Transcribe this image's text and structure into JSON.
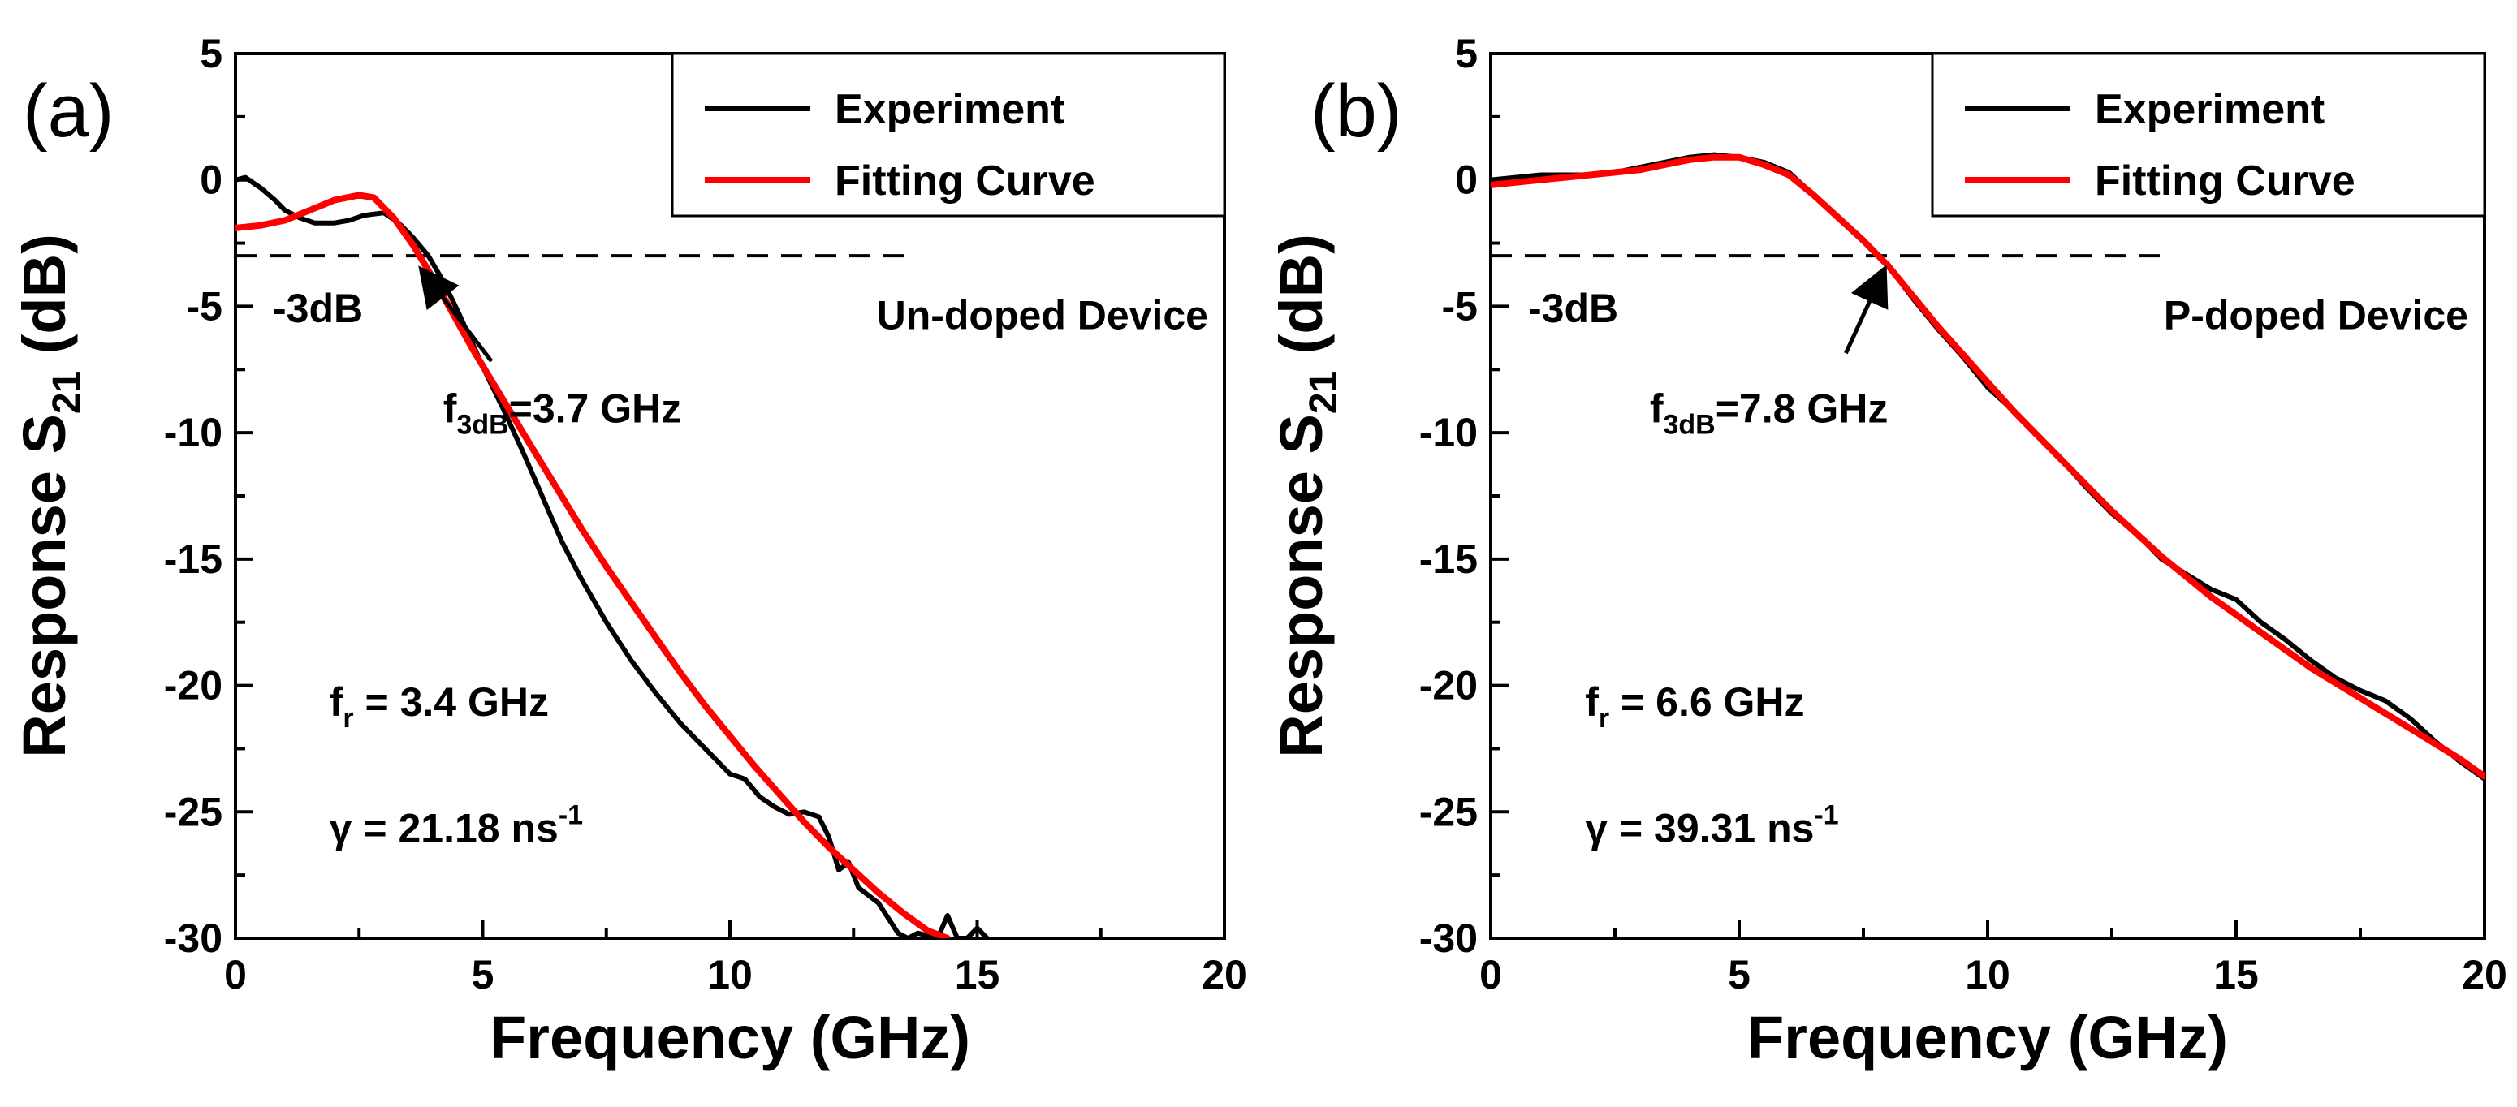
{
  "chart_data": [
    {
      "type": "line",
      "panel_label": "(a)",
      "xlabel": "Frequency (GHz)",
      "ylabel_main": "Response S",
      "ylabel_sub": "21",
      "ylabel_unit": " (dB)",
      "xlim": [
        0,
        20
      ],
      "ylim": [
        -30,
        5
      ],
      "xticks": [
        "0",
        "5",
        "10",
        "15",
        "20"
      ],
      "yticks": [
        "5",
        "0",
        "-5",
        "-10",
        "-15",
        "-20",
        "-25",
        "-30"
      ],
      "legend_position": "top-right",
      "legend": [
        "Experiment",
        "Fitting Curve"
      ],
      "threshold": {
        "y": -3,
        "x_end": 13.6,
        "label": "-3dB"
      },
      "device_label": "Un-doped Device",
      "f3db": {
        "prefix": "f",
        "sub": "3dB",
        "value_text": "=3.7 GHz",
        "x": 3.7,
        "y": -3
      },
      "fr_text": {
        "prefix": "f",
        "sub": "r",
        "value_text": " = 3.4 GHz"
      },
      "gamma_text": {
        "base": "γ = 21.18 ns",
        "sup": "-1"
      },
      "series": [
        {
          "name": "Experiment",
          "color": "#000000",
          "x": [
            0.0,
            0.2,
            0.5,
            0.8,
            1.0,
            1.3,
            1.6,
            2.0,
            2.3,
            2.6,
            3.0,
            3.3,
            3.6,
            3.9,
            4.2,
            4.5,
            4.8,
            5.1,
            5.4,
            5.8,
            6.2,
            6.6,
            7.0,
            7.5,
            8.0,
            8.5,
            9.0,
            9.5,
            10.0,
            10.3,
            10.6,
            10.9,
            11.2,
            11.5,
            11.8,
            12.0,
            12.2,
            12.4,
            12.6,
            12.8,
            13.0,
            13.2,
            13.4,
            13.6,
            13.8,
            14.0,
            14.2,
            14.4,
            14.6,
            14.8,
            15.0,
            15.2
          ],
          "y": [
            0.0,
            0.1,
            -0.3,
            -0.8,
            -1.2,
            -1.5,
            -1.7,
            -1.7,
            -1.6,
            -1.4,
            -1.3,
            -1.7,
            -2.3,
            -3.0,
            -4.0,
            -5.2,
            -6.5,
            -7.8,
            -9.0,
            -10.7,
            -12.5,
            -14.3,
            -15.8,
            -17.5,
            -19.0,
            -20.3,
            -21.5,
            -22.5,
            -23.5,
            -23.7,
            -24.4,
            -24.8,
            -25.1,
            -25.0,
            -25.2,
            -26.0,
            -27.3,
            -27.0,
            -28.0,
            -28.3,
            -28.6,
            -29.2,
            -29.8,
            -30.0,
            -29.8,
            -29.9,
            -30.0,
            -29.1,
            -30.0,
            -30.0,
            -29.6,
            -30.0
          ]
        },
        {
          "name": "Fitting Curve",
          "color": "#ff0000",
          "x": [
            0.0,
            0.5,
            1.0,
            1.5,
            2.0,
            2.5,
            2.8,
            3.2,
            3.6,
            4.0,
            4.4,
            4.8,
            5.2,
            5.6,
            6.0,
            6.5,
            7.0,
            7.5,
            8.0,
            8.5,
            9.0,
            9.5,
            10.0,
            10.5,
            11.0,
            11.5,
            12.0,
            12.5,
            13.0,
            13.5,
            14.0,
            14.4
          ],
          "y": [
            -1.9,
            -1.8,
            -1.6,
            -1.2,
            -0.8,
            -0.6,
            -0.7,
            -1.5,
            -2.6,
            -3.9,
            -5.3,
            -6.7,
            -8.0,
            -9.3,
            -10.6,
            -12.2,
            -13.8,
            -15.3,
            -16.7,
            -18.1,
            -19.5,
            -20.8,
            -22.0,
            -23.2,
            -24.3,
            -25.4,
            -26.4,
            -27.3,
            -28.2,
            -29.0,
            -29.7,
            -30.0
          ]
        }
      ]
    },
    {
      "type": "line",
      "panel_label": "(b)",
      "xlabel": "Frequency (GHz)",
      "ylabel_main": "Response S",
      "ylabel_sub": "21",
      "ylabel_unit": " (dB)",
      "xlim": [
        0,
        20
      ],
      "ylim": [
        -30,
        5
      ],
      "xticks": [
        "0",
        "5",
        "10",
        "15",
        "20"
      ],
      "yticks": [
        "5",
        "0",
        "-5",
        "-10",
        "-15",
        "-20",
        "-25",
        "-30"
      ],
      "legend_position": "top-right",
      "legend": [
        "Experiment",
        "Fitting Curve"
      ],
      "threshold": {
        "y": -3,
        "x_end": 13.6,
        "label": "-3dB"
      },
      "device_label": "P-doped Device",
      "f3db": {
        "prefix": "f",
        "sub": "3dB",
        "value_text": "=7.8 GHz",
        "x": 7.8,
        "y": -3
      },
      "fr_text": {
        "prefix": "f",
        "sub": "r",
        "value_text": " = 6.6 GHz"
      },
      "gamma_text": {
        "base": "γ = 39.31 ns",
        "sup": "-1"
      },
      "series": [
        {
          "name": "Experiment",
          "color": "#000000",
          "x": [
            0.0,
            0.5,
            1.0,
            1.5,
            2.0,
            2.5,
            3.0,
            3.5,
            4.0,
            4.5,
            5.0,
            5.5,
            6.0,
            6.5,
            7.0,
            7.5,
            8.0,
            8.5,
            9.0,
            9.5,
            10.0,
            10.5,
            11.0,
            11.5,
            12.0,
            12.5,
            13.0,
            13.5,
            14.0,
            14.5,
            15.0,
            15.5,
            16.0,
            16.5,
            17.0,
            17.5,
            18.0,
            18.5,
            19.0,
            19.5,
            20.0
          ],
          "y": [
            0.0,
            0.1,
            0.2,
            0.2,
            0.2,
            0.3,
            0.5,
            0.7,
            0.9,
            1.0,
            0.9,
            0.7,
            0.3,
            -0.6,
            -1.5,
            -2.4,
            -3.4,
            -4.7,
            -5.9,
            -7.0,
            -8.2,
            -9.1,
            -10.1,
            -11.1,
            -12.2,
            -13.2,
            -14.0,
            -15.0,
            -15.6,
            -16.2,
            -16.6,
            -17.5,
            -18.2,
            -19.0,
            -19.7,
            -20.2,
            -20.6,
            -21.3,
            -22.2,
            -23.0,
            -23.7
          ]
        },
        {
          "name": "Fitting Curve",
          "color": "#ff0000",
          "x": [
            0.0,
            0.5,
            1.0,
            1.5,
            2.0,
            2.5,
            3.0,
            3.5,
            4.0,
            4.5,
            5.0,
            5.5,
            6.0,
            6.5,
            7.0,
            7.5,
            8.0,
            8.5,
            9.0,
            9.5,
            10.0,
            10.5,
            11.0,
            11.5,
            12.0,
            12.5,
            13.0,
            13.5,
            14.0,
            14.5,
            15.0,
            15.5,
            16.0,
            16.5,
            17.0,
            17.5,
            18.0,
            18.5,
            19.0,
            19.5,
            20.0
          ],
          "y": [
            -0.2,
            -0.1,
            0.0,
            0.1,
            0.2,
            0.3,
            0.4,
            0.6,
            0.8,
            0.9,
            0.9,
            0.6,
            0.2,
            -0.6,
            -1.5,
            -2.4,
            -3.4,
            -4.6,
            -5.8,
            -6.9,
            -8.0,
            -9.1,
            -10.1,
            -11.1,
            -12.1,
            -13.1,
            -14.0,
            -14.9,
            -15.7,
            -16.5,
            -17.2,
            -17.9,
            -18.6,
            -19.3,
            -19.9,
            -20.5,
            -21.1,
            -21.7,
            -22.3,
            -22.9,
            -23.6
          ]
        }
      ]
    }
  ]
}
